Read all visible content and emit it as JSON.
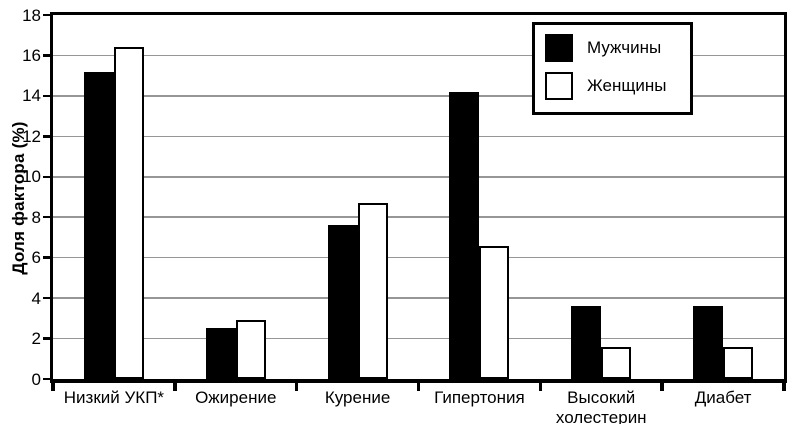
{
  "chart_data": {
    "type": "bar",
    "title": "",
    "xlabel": "",
    "ylabel": "Доля фактора (%)",
    "ylim": [
      0,
      18
    ],
    "ytick_step": 2,
    "grid": "horizontal-gray-lines",
    "legend_position": "top-right-inside",
    "categories": [
      "Низкий УКП*",
      "Ожирение",
      "Курение",
      "Гипертония",
      "Высокий холестерин",
      "Диабет"
    ],
    "series": [
      {
        "name": "Мужчины",
        "color": "#000000",
        "values": [
          15.2,
          2.5,
          7.6,
          14.2,
          3.6,
          3.6
        ]
      },
      {
        "name": "Женщины",
        "color": "#ffffff",
        "values": [
          16.4,
          2.9,
          8.7,
          6.6,
          1.6,
          1.6
        ]
      }
    ]
  },
  "colors": {
    "axis": "#000000",
    "gridline": "#969696",
    "background": "#ffffff",
    "bar_border": "#000000",
    "text": "#000000"
  }
}
